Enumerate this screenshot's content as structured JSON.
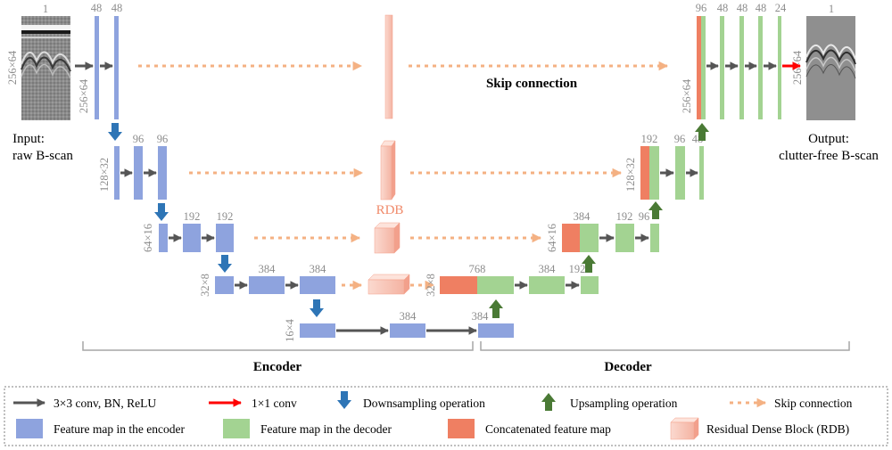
{
  "input": {
    "line1": "Input:",
    "line2": "raw B-scan",
    "dim": "256×64",
    "channels": "1"
  },
  "output": {
    "line1": "Output:",
    "line2": "clutter-free B-scan",
    "dim": "256×64",
    "channels": "1"
  },
  "labels": {
    "skip_connection": "Skip connection",
    "rdb": "RDB",
    "encoder": "Encoder",
    "decoder": "Decoder"
  },
  "encoder": {
    "l1": {
      "dim": "256×64",
      "c1": "48",
      "c2": "48"
    },
    "l2": {
      "dim": "128×32",
      "c1": "96",
      "c2": "96"
    },
    "l3": {
      "dim": "64×16",
      "c1": "192",
      "c2": "192"
    },
    "l4": {
      "dim": "32×8",
      "c1": "384",
      "c2": "384"
    },
    "bottleneck": {
      "dim": "16×4",
      "c1": "384",
      "up": "384"
    }
  },
  "decoder": {
    "l4": {
      "dim": "32×8",
      "concat": "768",
      "c1": "384",
      "up": "192"
    },
    "l3": {
      "dim": "64×16",
      "concat": "384",
      "c1": "192",
      "up": "96"
    },
    "l2": {
      "dim": "128×32",
      "concat": "192",
      "c1": "96",
      "up": "48"
    },
    "l1": {
      "dim": "256×64",
      "concat": "96",
      "c1": "48",
      "c2": "48",
      "c3": "48",
      "c4": "24"
    }
  },
  "legend": {
    "conv": "3×3 conv, BN, ReLU",
    "conv1x1": "1×1 conv",
    "down": "Downsampling operation",
    "up": "Upsampling operation",
    "skip": "Skip connection",
    "enc_map": "Feature map in the encoder",
    "dec_map": "Feature map in the decoder",
    "concat_map": "Concatenated feature map",
    "rdb_block": "Residual Dense Block (RDB)"
  },
  "colors": {
    "encoder": "#8ea3de",
    "decoder": "#a3d392",
    "concat": "#ef7f62",
    "rdb": "#f8c5b7",
    "conv_arrow": "#555555",
    "conv1x1_arrow": "#ff0000",
    "down_arrow": "#2e75b6",
    "up_arrow": "#4a7a35",
    "skip_arrow": "#f4b183"
  }
}
